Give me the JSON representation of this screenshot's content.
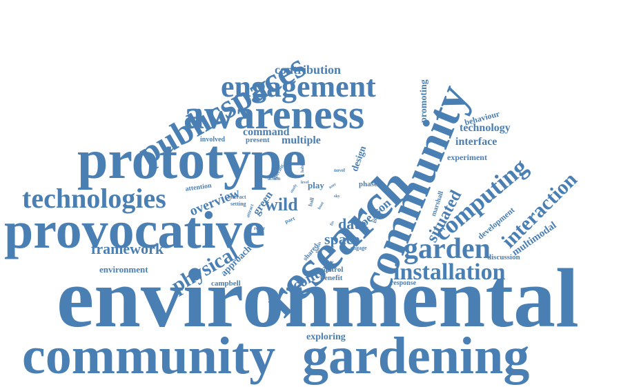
{
  "style": {
    "word_color": "#4a7fb3",
    "background": "#ffffff"
  },
  "words": [
    "environmental",
    "community",
    "gardening",
    "research",
    "prototype",
    "provocative",
    "awareness",
    "publicspaces",
    "technologies",
    "engagement",
    "garden",
    "computing",
    "installation",
    "interaction",
    "physical",
    "contribution",
    "framework",
    "wild",
    "space",
    "context",
    "data",
    "situated",
    "technology",
    "interface",
    "multimodal",
    "development",
    "overview",
    "command",
    "multiple",
    "design",
    "promoting",
    "behaviour",
    "experiment",
    "exploring",
    "environment",
    "approach",
    "green",
    "person",
    "campbell",
    "discussion",
    "control",
    "benefit",
    "response",
    "present",
    "involved",
    "attention",
    "interact",
    "setting",
    "play",
    "phase",
    "marshall",
    "issue",
    "engage",
    "shared",
    "thesis",
    "attract",
    "roger",
    "part",
    "action",
    "ball",
    "novel",
    "habit",
    "specific",
    "level",
    "study",
    "user",
    "sky",
    "bout",
    "fix"
  ]
}
